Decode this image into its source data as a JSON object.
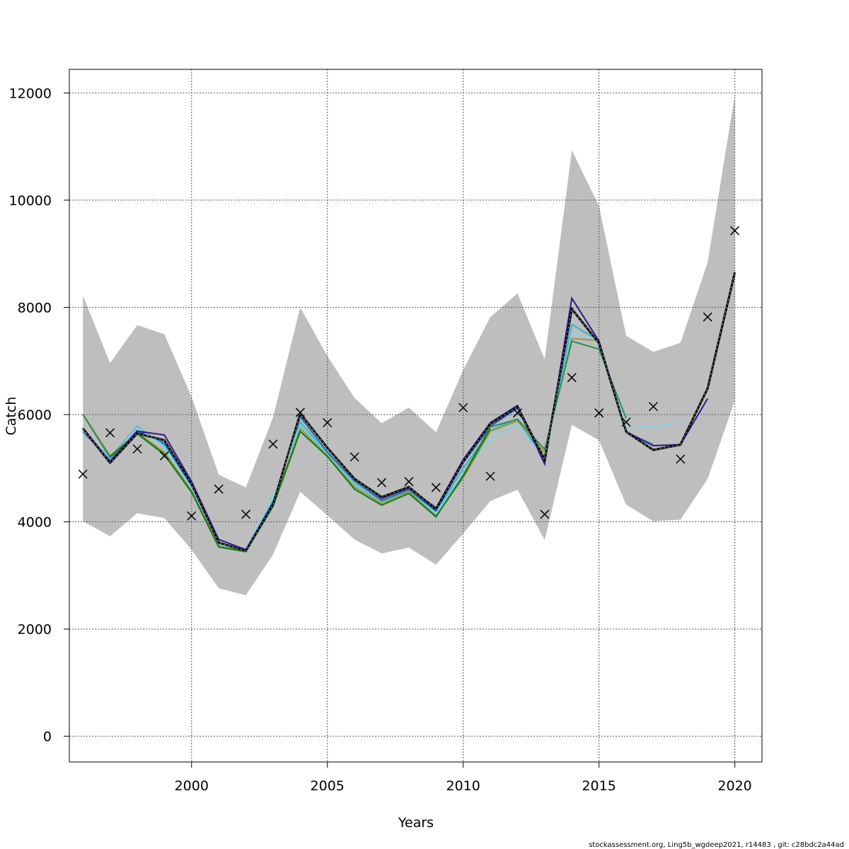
{
  "chart_data": {
    "type": "line",
    "xlabel": "Years",
    "ylabel": "Catch",
    "xlim": [
      1995.5,
      2021.0
    ],
    "ylim": [
      -480,
      12440
    ],
    "x_ticks": [
      2000,
      2005,
      2010,
      2015,
      2020
    ],
    "y_ticks": [
      0,
      2000,
      4000,
      6000,
      8000,
      10000,
      12000
    ],
    "x_tick_labels": [
      "2000",
      "2005",
      "2010",
      "2015",
      "2020"
    ],
    "y_tick_labels": [
      "0",
      "2000",
      "4000",
      "6000",
      "8000",
      "10000",
      "12000"
    ],
    "grid": true,
    "band": {
      "x": [
        1996,
        1997,
        1998,
        1999,
        2000,
        2001,
        2002,
        2003,
        2004,
        2005,
        2006,
        2007,
        2008,
        2009,
        2010,
        2011,
        2012,
        2013,
        2014,
        2015,
        2016,
        2017,
        2018,
        2019,
        2020
      ],
      "upper": [
        8220,
        6960,
        7670,
        7500,
        6330,
        4880,
        4640,
        5950,
        8000,
        7090,
        6310,
        5840,
        6130,
        5670,
        6830,
        7820,
        8260,
        7030,
        10930,
        9890,
        7470,
        7170,
        7340,
        8840,
        11960
      ],
      "lower": [
        4010,
        3730,
        4160,
        4070,
        3480,
        2760,
        2630,
        3390,
        4560,
        4120,
        3670,
        3410,
        3520,
        3200,
        3780,
        4390,
        4600,
        3660,
        5810,
        5520,
        4320,
        4010,
        4040,
        4800,
        6260
      ]
    },
    "observations": {
      "x": [
        1996,
        1997,
        1998,
        1999,
        2000,
        2001,
        2002,
        2003,
        2004,
        2005,
        2006,
        2007,
        2008,
        2009,
        2010,
        2011,
        2012,
        2013,
        2014,
        2015,
        2016,
        2017,
        2018,
        2019,
        2020
      ],
      "y": [
        4890,
        5660,
        5360,
        5230,
        4110,
        4610,
        4140,
        5450,
        6040,
        5850,
        5210,
        4730,
        4750,
        4640,
        6130,
        4850,
        6030,
        4140,
        6690,
        6030,
        5860,
        6150,
        5170,
        7820,
        9430
      ]
    },
    "series": [
      {
        "color": "#000000",
        "dashed": true,
        "x": [
          1996,
          1997,
          1998,
          1999,
          2000,
          2001,
          2002,
          2003,
          2004,
          2005,
          2006,
          2007,
          2008,
          2009,
          2010,
          2011,
          2012,
          2013,
          2014,
          2015,
          2016,
          2017,
          2018,
          2019,
          2020
        ],
        "values": [
          5740,
          5100,
          5650,
          5520,
          4700,
          3610,
          3460,
          4320,
          6020,
          5380,
          4800,
          4460,
          4650,
          4230,
          5120,
          5830,
          6140,
          5160,
          7970,
          7330,
          5680,
          5340,
          5440,
          6490,
          8650
        ]
      },
      {
        "color": "#2166ac",
        "x": [
          1996,
          1997,
          1998,
          1999,
          2000,
          2001,
          2002,
          2003,
          2004,
          2005,
          2006,
          2007,
          2008,
          2009,
          2010,
          2011,
          2012,
          2013
        ],
        "values": [
          5680,
          5150,
          5700,
          5460,
          4680,
          3580,
          3480,
          4390,
          5960,
          5300,
          4760,
          4400,
          4600,
          4200,
          5100,
          5780,
          6120,
          5080
        ]
      },
      {
        "color": "#2eb8c8",
        "x": [
          1996,
          1997,
          1998,
          1999,
          2000,
          2001,
          2002,
          2003,
          2004,
          2005,
          2006,
          2007,
          2008,
          2009,
          2010,
          2011,
          2012,
          2013,
          2014,
          2015,
          2016,
          2017
        ],
        "values": [
          5700,
          5200,
          5780,
          5420,
          4630,
          3560,
          3490,
          4420,
          5860,
          5260,
          4700,
          4370,
          4570,
          4170,
          5000,
          5700,
          5920,
          5150,
          7680,
          7380,
          5660,
          5450
        ]
      },
      {
        "color": "#87ceeb",
        "x": [
          1996,
          1997,
          1998,
          1999,
          2000,
          2001,
          2002,
          2003,
          2004,
          2005,
          2006,
          2007,
          2008,
          2009,
          2010,
          2011,
          2012,
          2013,
          2014,
          2015,
          2016,
          2017,
          2018
        ],
        "values": [
          5710,
          5180,
          5760,
          5400,
          4620,
          3570,
          3500,
          4450,
          5800,
          5250,
          4680,
          4360,
          4550,
          4160,
          4900,
          5550,
          5810,
          5180,
          7520,
          7340,
          5760,
          5770,
          5860
        ]
      },
      {
        "color": "#9a9a3a",
        "x": [
          1996,
          1997,
          1998,
          1999,
          2000,
          2001,
          2002,
          2003,
          2004,
          2005,
          2006,
          2007,
          2008,
          2009,
          2010,
          2011,
          2012,
          2013,
          2014,
          2015
        ],
        "values": [
          6010,
          5230,
          5660,
          5300,
          4580,
          3550,
          3450,
          4300,
          5750,
          5230,
          4650,
          4350,
          4560,
          4110,
          4820,
          5690,
          5880,
          5290,
          7420,
          7380
        ]
      },
      {
        "color": "#2e8b57",
        "x": [
          1996,
          1997,
          1998,
          1999,
          2000,
          2001,
          2002,
          2003,
          2004,
          2005,
          2006,
          2007,
          2008,
          2009,
          2010,
          2011,
          2012,
          2013,
          2014,
          2015,
          2016
        ],
        "values": [
          6000,
          5200,
          5640,
          5250,
          4550,
          3530,
          3440,
          4290,
          5690,
          5220,
          4610,
          4310,
          4530,
          4090,
          4870,
          5770,
          5910,
          5350,
          7370,
          7220,
          5930
        ]
      },
      {
        "color": "#1a7a1a",
        "x": [
          1997,
          1998,
          1999,
          2000,
          2001,
          2002,
          2003,
          2004,
          2005,
          2006,
          2007,
          2008,
          2009,
          2010,
          2011
        ],
        "values": [
          5220,
          5650,
          5260,
          4560,
          3530,
          3450,
          4290,
          5690,
          5220,
          4610,
          4310,
          4530,
          4100,
          4850,
          5740
        ]
      },
      {
        "color": "#2e1a8a",
        "x": [
          1996,
          1997,
          1998,
          1999,
          2000,
          2001,
          2002,
          2003,
          2004,
          2005,
          2006,
          2007,
          2008,
          2009,
          2010,
          2011,
          2012,
          2013,
          2014,
          2015,
          2016,
          2017,
          2018,
          2019
        ],
        "values": [
          5750,
          5120,
          5690,
          5620,
          4750,
          3670,
          3480,
          4350,
          6020,
          5370,
          4800,
          4440,
          4630,
          4260,
          5160,
          5850,
          6170,
          5080,
          8170,
          7370,
          5680,
          5420,
          5440,
          6300
        ]
      }
    ]
  },
  "footer_text": "stockassessment.org, Ling5b_wgdeep2021, r14483 , git: c28bdc2a44ad"
}
